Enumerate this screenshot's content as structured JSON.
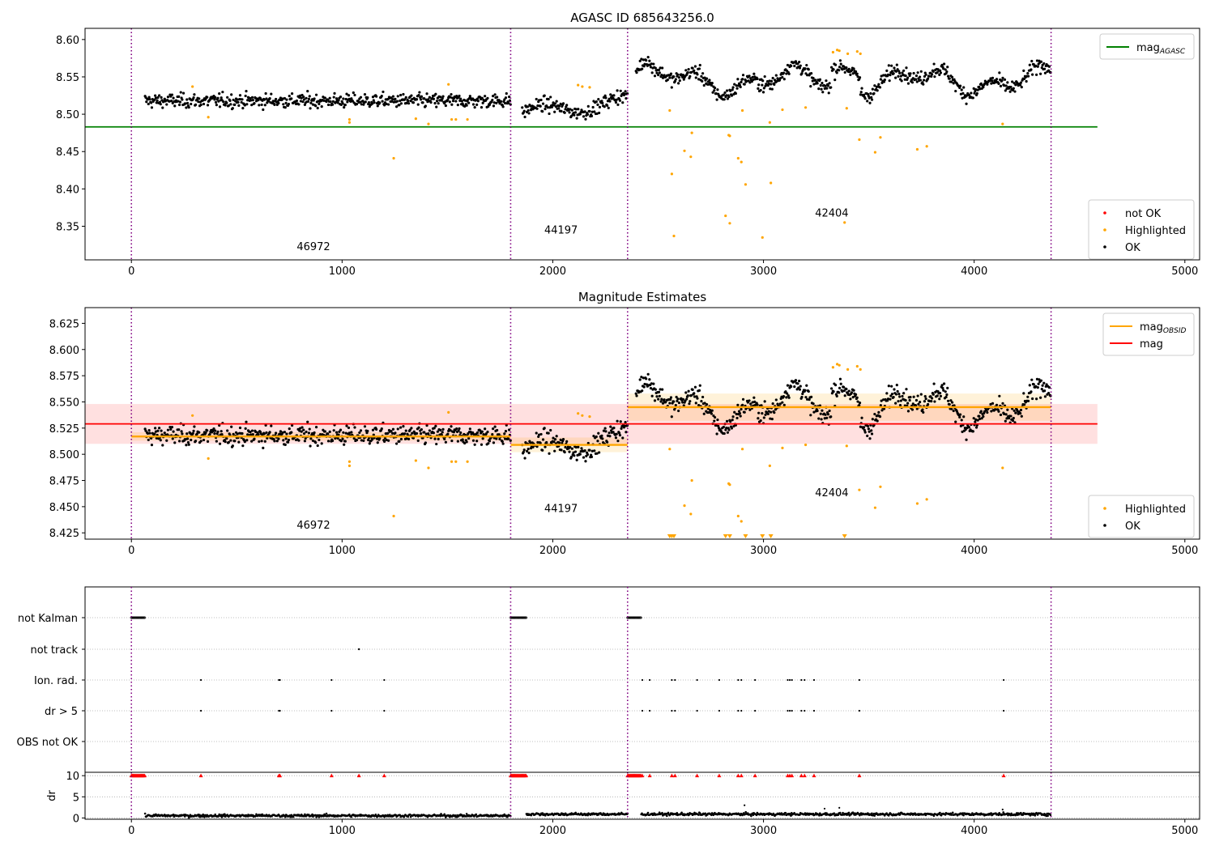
{
  "chart_data": [
    {
      "panel": "top",
      "type": "scatter",
      "title": "AGASC ID 685643256.0",
      "xlim": [
        -220,
        5070
      ],
      "ylim": [
        8.305,
        8.615
      ],
      "xticks": [
        0,
        1000,
        2000,
        3000,
        4000,
        5000
      ],
      "xtick_labels": [
        "0",
        "1000",
        "2000",
        "3000",
        "4000",
        "5000"
      ],
      "yticks": [
        8.35,
        8.4,
        8.45,
        8.5,
        8.55,
        8.6
      ],
      "ytick_labels": [
        "8.35",
        "8.40",
        "8.45",
        "8.50",
        "8.55",
        "8.60"
      ],
      "obs_boundaries": [
        0,
        1800,
        2355,
        4365
      ],
      "obs_labels": [
        {
          "x": 900,
          "y": 8.318,
          "text": "46972"
        },
        {
          "x": 2075,
          "y": 8.34,
          "text": "44197"
        },
        {
          "x": 3360,
          "y": 8.363,
          "text": "42404"
        }
      ],
      "hline": {
        "name": "mag_AGASC",
        "y": 8.483,
        "x_range": [
          -220,
          4585
        ],
        "color": "#008000"
      },
      "legends": [
        {
          "position": "top-right",
          "entries": [
            {
              "label_main": "mag",
              "label_sub": "AGASC",
              "color": "#008000",
              "kind": "line"
            }
          ]
        },
        {
          "position": "bottom-right",
          "entries": [
            {
              "label": "not OK",
              "color": "#ff0000",
              "kind": "point"
            },
            {
              "label": "Highlighted",
              "color": "#ffa500",
              "kind": "point"
            },
            {
              "label": "OK",
              "color": "#000000",
              "kind": "point"
            }
          ]
        }
      ],
      "highlighted": [
        [
          290,
          8.537
        ],
        [
          365,
          8.496
        ],
        [
          1035,
          8.493
        ],
        [
          1035,
          8.489
        ],
        [
          1245,
          8.441
        ],
        [
          1350,
          8.494
        ],
        [
          1410,
          8.487
        ],
        [
          1505,
          8.54
        ],
        [
          1520,
          8.493
        ],
        [
          1540,
          8.493
        ],
        [
          1595,
          8.493
        ],
        [
          2120,
          8.539
        ],
        [
          2140,
          8.537
        ],
        [
          2175,
          8.536
        ],
        [
          2555,
          8.505
        ],
        [
          2565,
          8.42
        ],
        [
          2575,
          8.337
        ],
        [
          2625,
          8.451
        ],
        [
          2655,
          8.443
        ],
        [
          2660,
          8.475
        ],
        [
          2820,
          8.364
        ],
        [
          2835,
          8.472
        ],
        [
          2840,
          8.471
        ],
        [
          2840,
          8.354
        ],
        [
          2880,
          8.441
        ],
        [
          2895,
          8.436
        ],
        [
          2900,
          8.505
        ],
        [
          2915,
          8.406
        ],
        [
          2995,
          8.335
        ],
        [
          3030,
          8.489
        ],
        [
          3035,
          8.408
        ],
        [
          3090,
          8.506
        ],
        [
          3200,
          8.509
        ],
        [
          3330,
          8.583
        ],
        [
          3350,
          8.586
        ],
        [
          3360,
          8.585
        ],
        [
          3385,
          8.355
        ],
        [
          3395,
          8.508
        ],
        [
          3400,
          8.581
        ],
        [
          3445,
          8.584
        ],
        [
          3455,
          8.466
        ],
        [
          3460,
          8.581
        ],
        [
          3530,
          8.449
        ],
        [
          3555,
          8.469
        ],
        [
          3730,
          8.453
        ],
        [
          3775,
          8.457
        ],
        [
          4135,
          8.487
        ]
      ],
      "ok_points_note": "dense OK (black) series drawn from segment means below",
      "ok_segments": [
        {
          "x": [
            65,
            1800
          ],
          "mean": 8.518,
          "spread": 0.012
        },
        {
          "x": [
            1855,
            2355
          ],
          "mean": 8.509,
          "spread": 0.012
        },
        {
          "x": [
            2395,
            4365
          ],
          "mean": 8.545,
          "spread": 0.012
        }
      ]
    },
    {
      "panel": "middle",
      "type": "scatter",
      "title": "Magnitude Estimates",
      "xlim": [
        -220,
        5070
      ],
      "ylim": [
        8.419,
        8.64
      ],
      "xticks": [
        0,
        1000,
        2000,
        3000,
        4000,
        5000
      ],
      "xtick_labels": [
        "0",
        "1000",
        "2000",
        "3000",
        "4000",
        "5000"
      ],
      "yticks": [
        8.425,
        8.45,
        8.475,
        8.5,
        8.525,
        8.55,
        8.575,
        8.6,
        8.625
      ],
      "ytick_labels": [
        "8.425",
        "8.450",
        "8.475",
        "8.500",
        "8.525",
        "8.550",
        "8.575",
        "8.600",
        "8.625"
      ],
      "obs_boundaries": [
        0,
        1800,
        2355,
        4365
      ],
      "obs_labels": [
        {
          "x": 900,
          "y": 8.429,
          "text": "46972"
        },
        {
          "x": 2075,
          "y": 8.445,
          "text": "44197"
        },
        {
          "x": 3360,
          "y": 8.46,
          "text": "42404"
        }
      ],
      "mag": {
        "y": 8.529,
        "band": [
          8.51,
          8.548
        ],
        "x_range": [
          -220,
          4585
        ],
        "color": "#ff0000"
      },
      "mag_obsid": [
        {
          "x": [
            0,
            1800
          ],
          "y": 8.517,
          "band": [
            8.513,
            8.521
          ]
        },
        {
          "x": [
            1800,
            2355
          ],
          "y": 8.509,
          "band": [
            8.502,
            8.516
          ]
        },
        {
          "x": [
            2355,
            4365
          ],
          "y": 8.545,
          "band": [
            8.532,
            8.558
          ]
        }
      ],
      "legends": [
        {
          "position": "top-right",
          "entries": [
            {
              "label_main": "mag",
              "label_sub": "OBSID",
              "color": "#ffa500",
              "kind": "line"
            },
            {
              "label_main": "mag",
              "label_sub": "",
              "color": "#ff0000",
              "kind": "line"
            }
          ]
        },
        {
          "position": "bottom-right",
          "entries": [
            {
              "label": "Highlighted",
              "color": "#ffa500",
              "kind": "point"
            },
            {
              "label": "OK",
              "color": "#000000",
              "kind": "point"
            }
          ]
        }
      ],
      "highlighted": [
        [
          290,
          8.537
        ],
        [
          365,
          8.496
        ],
        [
          1035,
          8.493
        ],
        [
          1035,
          8.489
        ],
        [
          1245,
          8.441
        ],
        [
          1350,
          8.494
        ],
        [
          1410,
          8.487
        ],
        [
          1505,
          8.54
        ],
        [
          1520,
          8.493
        ],
        [
          1540,
          8.493
        ],
        [
          1595,
          8.493
        ],
        [
          2120,
          8.539
        ],
        [
          2140,
          8.537
        ],
        [
          2175,
          8.536
        ],
        [
          2555,
          8.505
        ],
        [
          2625,
          8.451
        ],
        [
          2655,
          8.443
        ],
        [
          2660,
          8.475
        ],
        [
          2835,
          8.472
        ],
        [
          2840,
          8.471
        ],
        [
          2880,
          8.441
        ],
        [
          2895,
          8.436
        ],
        [
          2900,
          8.505
        ],
        [
          3030,
          8.489
        ],
        [
          3090,
          8.506
        ],
        [
          3200,
          8.509
        ],
        [
          3330,
          8.583
        ],
        [
          3350,
          8.586
        ],
        [
          3360,
          8.585
        ],
        [
          3395,
          8.508
        ],
        [
          3400,
          8.581
        ],
        [
          3445,
          8.584
        ],
        [
          3455,
          8.466
        ],
        [
          3460,
          8.581
        ],
        [
          3530,
          8.449
        ],
        [
          3555,
          8.469
        ],
        [
          3730,
          8.453
        ],
        [
          3775,
          8.457
        ],
        [
          4135,
          8.487
        ]
      ],
      "clipped_below": [
        2555,
        2565,
        2575,
        2820,
        2840,
        2915,
        2995,
        3035,
        3385
      ]
    },
    {
      "panel": "bottom-flags",
      "type": "scatter",
      "categories": [
        "not Kalman",
        "not track",
        "Ion. rad.",
        "dr > 5",
        "OBS not OK"
      ],
      "xlim": [
        -220,
        5070
      ],
      "not_kalman_ranges": [
        [
          0,
          65
        ],
        [
          1800,
          1875
        ],
        [
          2355,
          2420
        ]
      ],
      "not_track": [
        1080
      ],
      "ion_rad": [
        330,
        700,
        705,
        950,
        1200,
        2425,
        2460,
        2565,
        2580,
        2685,
        2790,
        2880,
        2895,
        2960,
        3115,
        3125,
        3135,
        3180,
        3195,
        3240,
        3455,
        4140
      ],
      "dr_gt_5": [
        330,
        700,
        705,
        950,
        1200,
        2425,
        2460,
        2565,
        2580,
        2685,
        2790,
        2880,
        2895,
        2960,
        3115,
        3125,
        3135,
        3180,
        3195,
        3240,
        3455,
        4140
      ],
      "obs_not_ok": []
    },
    {
      "panel": "bottom-dr",
      "type": "scatter",
      "ylabel": "dr",
      "xlim": [
        -220,
        5070
      ],
      "ylim": [
        -0.3,
        10.8
      ],
      "yticks": [
        0,
        5,
        10
      ],
      "ytick_labels": [
        "0",
        "5",
        "10"
      ],
      "xticks": [
        0,
        1000,
        2000,
        3000,
        4000,
        5000
      ],
      "xtick_labels": [
        "0",
        "1000",
        "2000",
        "3000",
        "4000",
        "5000"
      ],
      "clipped_at_10": [
        330,
        700,
        705,
        950,
        1080,
        1200,
        2425,
        2460,
        2565,
        2580,
        2685,
        2790,
        2880,
        2895,
        2960,
        3115,
        3125,
        3135,
        3180,
        3195,
        3240,
        3455,
        4140
      ],
      "outliers": [
        [
          2910,
          3.0
        ],
        [
          3360,
          2.4
        ],
        [
          4135,
          2.0
        ],
        [
          3290,
          2.2
        ]
      ],
      "segments": [
        {
          "x": [
            65,
            1800
          ],
          "mean": 0.55
        },
        {
          "x": [
            1875,
            2355
          ],
          "mean": 0.9
        },
        {
          "x": [
            2420,
            4365
          ],
          "mean": 0.9
        }
      ]
    }
  ],
  "colors": {
    "ok": "#000000",
    "highlighted": "#ffa500",
    "not_ok": "#ff0000",
    "mag_agasc": "#008000",
    "mag": "#ff0000",
    "mag_obsid": "#ffa500",
    "obs_boundary": "#800080"
  }
}
